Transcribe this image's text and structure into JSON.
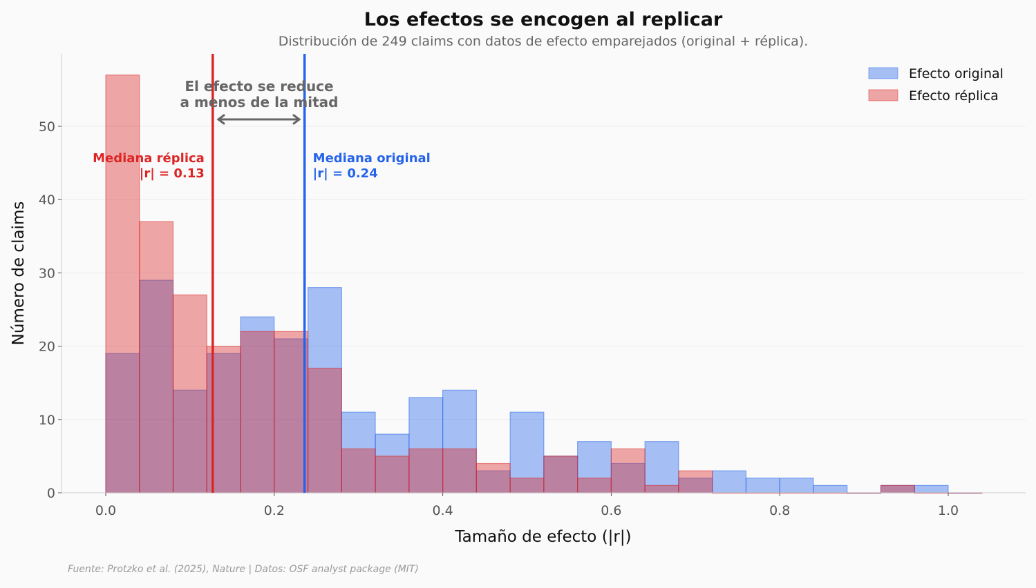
{
  "chart_data": {
    "type": "bar",
    "title": "Los efectos se encogen al replicar",
    "subtitle": "Distribución de 249 claims con datos de efecto emparejados (original + réplica).",
    "xlabel": "Tamaño de efecto (|r|)",
    "ylabel": "Número de claims",
    "xlim": [
      -0.052,
      1.09
    ],
    "ylim": [
      0,
      60
    ],
    "x_ticks": [
      "0.0",
      "0.2",
      "0.4",
      "0.6",
      "0.8",
      "1.0"
    ],
    "y_ticks": [
      "0",
      "10",
      "20",
      "30",
      "40",
      "50"
    ],
    "grid": "horizontal",
    "legend_position": "top-right",
    "bin_edges": [
      0.0,
      0.04,
      0.08,
      0.12,
      0.16,
      0.2,
      0.24,
      0.28,
      0.32,
      0.36,
      0.4,
      0.44,
      0.48,
      0.52,
      0.56,
      0.6,
      0.64,
      0.68,
      0.72,
      0.76,
      0.8,
      0.84,
      0.88,
      0.92,
      0.96,
      1.0,
      1.04
    ],
    "series": [
      {
        "name": "Efecto original",
        "color": "#2563eb",
        "values": [
          19,
          29,
          14,
          19,
          24,
          21,
          28,
          11,
          8,
          13,
          14,
          3,
          11,
          5,
          7,
          4,
          7,
          2,
          3,
          2,
          2,
          1,
          0,
          1,
          1,
          0
        ]
      },
      {
        "name": "Efecto réplica",
        "color": "#dc2626",
        "values": [
          57,
          37,
          27,
          20,
          22,
          22,
          17,
          6,
          5,
          6,
          6,
          4,
          2,
          5,
          2,
          6,
          1,
          3,
          0,
          0,
          0,
          0,
          0,
          1,
          0,
          0
        ]
      }
    ],
    "medians": [
      {
        "value": 0.127,
        "color": "#dc2626",
        "label_line1": "Mediana réplica",
        "label_line2": "|r| = 0.13"
      },
      {
        "value": 0.236,
        "color": "#2563eb",
        "label_line1": "Mediana original",
        "label_line2": "|r| = 0.24"
      }
    ],
    "annotation": {
      "line1": "El efecto se reduce",
      "line2": "a menos de la mitad"
    },
    "source": "Fuente: Protzko et al. (2025), Nature | Datos: OSF analyst package (MIT)"
  }
}
